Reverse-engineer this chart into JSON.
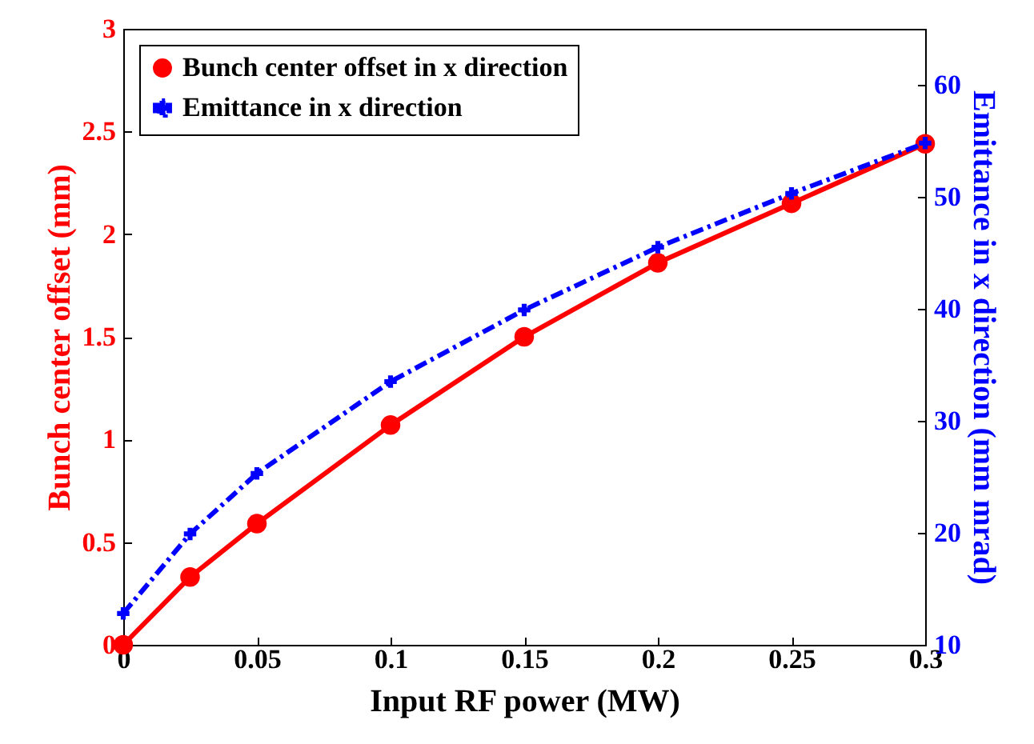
{
  "chart_data": {
    "type": "line",
    "xlabel": "Input RF power (MW)",
    "ylabel": "Bunch center offset (mm)",
    "y2label": "Emittance in x direction (mm mrad)",
    "x": [
      0,
      0.025,
      0.05,
      0.1,
      0.15,
      0.2,
      0.25,
      0.3
    ],
    "series": [
      {
        "name": "Bunch center offset in x direction",
        "color": "#ff0000",
        "marker": "circle",
        "line_style": "solid",
        "values": [
          0,
          0.33,
          0.59,
          1.07,
          1.5,
          1.86,
          2.15,
          2.44
        ]
      },
      {
        "name": "Emittance in x direction",
        "color": "#0000ff",
        "marker": "cross",
        "line_style": "dashed",
        "axis": "y2",
        "values": [
          12.8,
          19.9,
          25.3,
          33.5,
          39.9,
          45.5,
          50.3,
          54.8
        ]
      }
    ],
    "xlim": [
      0,
      0.3
    ],
    "xticks": [
      0,
      0.05,
      0.1,
      0.15,
      0.2,
      0.25,
      0.3
    ],
    "ylim": [
      0,
      3
    ],
    "yticks": [
      0,
      0.5,
      1,
      1.5,
      2,
      2.5,
      3
    ],
    "y2lim": [
      10,
      65
    ],
    "y2ticks": [
      10,
      20,
      30,
      40,
      50,
      60
    ],
    "legend": "top left",
    "grid": false
  }
}
